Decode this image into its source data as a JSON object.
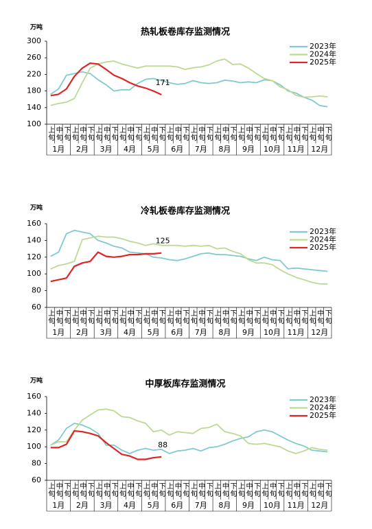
{
  "chart_data": [
    {
      "type": "line",
      "title": "热轧板卷库存监测情况",
      "y_label": "万吨",
      "categories": [
        "上旬",
        "中旬",
        "下旬",
        "上旬",
        "中旬",
        "下旬",
        "上旬",
        "中旬",
        "下旬",
        "上旬",
        "中旬",
        "下旬",
        "上旬",
        "中旬",
        "下旬",
        "上旬",
        "中旬",
        "下旬",
        "上旬",
        "中旬",
        "下旬",
        "上旬",
        "中旬",
        "下旬",
        "上旬",
        "中旬",
        "下旬",
        "上旬",
        "中旬",
        "下旬",
        "上旬",
        "中旬",
        "下旬",
        "上旬",
        "中旬",
        "下旬"
      ],
      "months": [
        "1月",
        "2月",
        "3月",
        "4月",
        "5月",
        "6月",
        "7月",
        "8月",
        "9月",
        "10月",
        "11月",
        "12月"
      ],
      "ylim": [
        100,
        300
      ],
      "yticks": [
        100,
        140,
        180,
        220,
        260,
        300
      ],
      "legend": "upper right",
      "annotation": "171",
      "series": [
        {
          "name": "2023年",
          "color": "#7fc9d3",
          "values": [
            172,
            185,
            218,
            222,
            226,
            222,
            207,
            195,
            180,
            183,
            183,
            198,
            208,
            210,
            205,
            200,
            196,
            198,
            205,
            200,
            198,
            200,
            206,
            204,
            200,
            202,
            200,
            207,
            205,
            195,
            180,
            175,
            165,
            158,
            145,
            142
          ]
        },
        {
          "name": "2024年",
          "color": "#bcd992",
          "values": [
            145,
            150,
            153,
            162,
            200,
            235,
            245,
            250,
            252,
            245,
            240,
            235,
            240,
            240,
            240,
            240,
            238,
            232,
            236,
            238,
            243,
            252,
            257,
            244,
            245,
            235,
            222,
            210,
            205,
            190,
            183,
            170,
            165,
            166,
            168,
            166
          ]
        },
        {
          "name": "2025年",
          "color": "#e02424",
          "values": [
            169,
            172,
            185,
            215,
            235,
            247,
            245,
            232,
            218,
            210,
            200,
            192,
            187,
            180,
            171,
            null,
            null,
            null,
            null,
            null,
            null,
            null,
            null,
            null,
            null,
            null,
            null,
            null,
            null,
            null,
            null,
            null,
            null,
            null,
            null,
            null
          ]
        }
      ]
    },
    {
      "type": "line",
      "title": "冷轧板卷库存监测情况",
      "y_label": "万吨",
      "categories": [
        "上旬",
        "中旬",
        "下旬",
        "上旬",
        "中旬",
        "下旬",
        "上旬",
        "中旬",
        "下旬",
        "上旬",
        "中旬",
        "下旬",
        "上旬",
        "中旬",
        "下旬",
        "上旬",
        "中旬",
        "下旬",
        "上旬",
        "中旬",
        "下旬",
        "上旬",
        "中旬",
        "下旬",
        "上旬",
        "中旬",
        "下旬",
        "上旬",
        "中旬",
        "下旬",
        "上旬",
        "中旬",
        "下旬",
        "上旬",
        "中旬",
        "下旬"
      ],
      "months": [
        "1月",
        "2月",
        "3月",
        "4月",
        "5月",
        "6月",
        "7月",
        "8月",
        "9月",
        "10月",
        "11月",
        "12月"
      ],
      "ylim": [
        60,
        160
      ],
      "yticks": [
        60,
        80,
        100,
        120,
        140,
        160
      ],
      "legend": "upper right",
      "annotation": "125",
      "series": [
        {
          "name": "2023年",
          "color": "#7fc9d3",
          "values": [
            121,
            126,
            148,
            152,
            150,
            148,
            140,
            137,
            133,
            131,
            126,
            125,
            124,
            120,
            119,
            117,
            116,
            118,
            121,
            124,
            125,
            123,
            123,
            122,
            121,
            118,
            116,
            120,
            117,
            116,
            106,
            107,
            106,
            105,
            104,
            103
          ]
        },
        {
          "name": "2024年",
          "color": "#bcd992",
          "values": [
            106,
            110,
            112,
            115,
            141,
            143,
            145,
            144,
            144,
            142,
            139,
            137,
            134,
            136,
            134,
            134,
            134,
            133,
            134,
            133,
            134,
            130,
            131,
            127,
            124,
            117,
            113,
            113,
            111,
            105,
            100,
            96,
            93,
            90,
            88,
            88
          ]
        },
        {
          "name": "2025年",
          "color": "#e02424",
          "values": [
            91,
            93,
            95,
            109,
            113,
            115,
            126,
            121,
            120,
            121,
            123,
            123,
            124,
            124,
            125,
            null,
            null,
            null,
            null,
            null,
            null,
            null,
            null,
            null,
            null,
            null,
            null,
            null,
            null,
            null,
            null,
            null,
            null,
            null,
            null,
            null
          ]
        }
      ]
    },
    {
      "type": "line",
      "title": "中厚板库存监测情况",
      "y_label": "万吨",
      "categories": [
        "上旬",
        "中旬",
        "下旬",
        "上旬",
        "中旬",
        "下旬",
        "上旬",
        "中旬",
        "下旬",
        "上旬",
        "中旬",
        "下旬",
        "上旬",
        "中旬",
        "下旬",
        "上旬",
        "中旬",
        "下旬",
        "上旬",
        "中旬",
        "下旬",
        "上旬",
        "中旬",
        "下旬",
        "上旬",
        "中旬",
        "下旬",
        "上旬",
        "中旬",
        "下旬",
        "上旬",
        "中旬",
        "下旬",
        "上旬",
        "中旬",
        "下旬"
      ],
      "months": [
        "1月",
        "2月",
        "3月",
        "4月",
        "5月",
        "6月",
        "7月",
        "8月",
        "9月",
        "10月",
        "11月",
        "12月"
      ],
      "ylim": [
        60,
        160
      ],
      "yticks": [
        60,
        80,
        100,
        120,
        140,
        160
      ],
      "legend": "upper right",
      "annotation": "88",
      "series": [
        {
          "name": "2023年",
          "color": "#7fc9d3",
          "values": [
            102,
            108,
            122,
            128,
            126,
            122,
            116,
            102,
            102,
            96,
            92,
            96,
            98,
            96,
            97,
            92,
            95,
            96,
            98,
            95,
            99,
            100,
            103,
            107,
            110,
            112,
            118,
            120,
            118,
            113,
            108,
            104,
            101,
            96,
            95,
            94
          ]
        },
        {
          "name": "2024年",
          "color": "#bcd992",
          "values": [
            102,
            106,
            106,
            120,
            132,
            138,
            144,
            145,
            143,
            136,
            135,
            131,
            128,
            118,
            120,
            114,
            118,
            117,
            116,
            122,
            123,
            127,
            118,
            116,
            113,
            104,
            103,
            104,
            102,
            100,
            95,
            92,
            95,
            99,
            97,
            96
          ]
        },
        {
          "name": "2025年",
          "color": "#e02424",
          "values": [
            99,
            99,
            103,
            119,
            118,
            116,
            113,
            105,
            98,
            91,
            89,
            85,
            85,
            87,
            88,
            null,
            null,
            null,
            null,
            null,
            null,
            null,
            null,
            null,
            null,
            null,
            null,
            null,
            null,
            null,
            null,
            null,
            null,
            null,
            null,
            null
          ]
        }
      ]
    }
  ]
}
